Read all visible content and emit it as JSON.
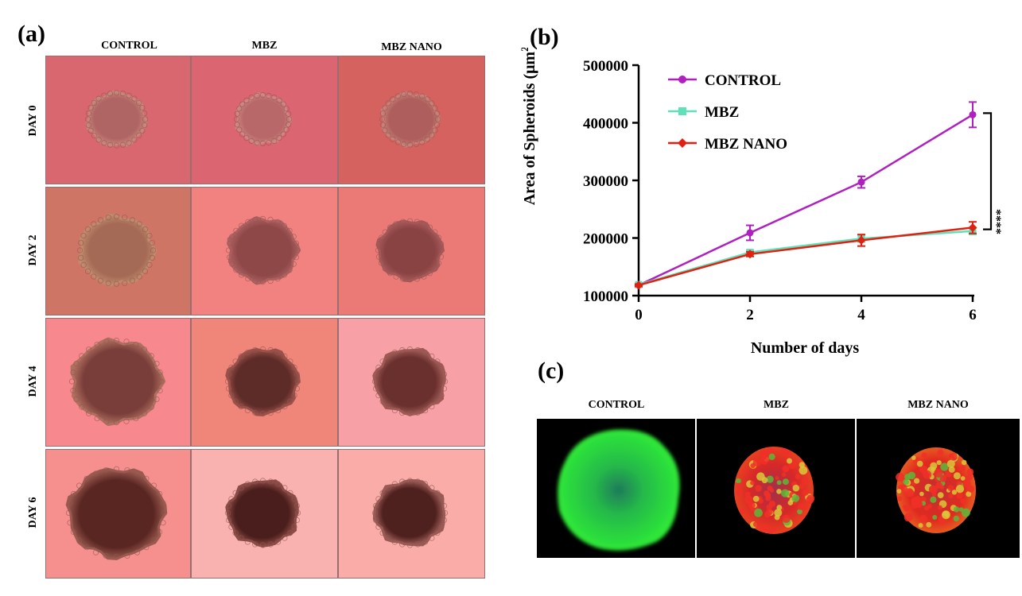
{
  "panel_a": {
    "label": "(a)",
    "columns": [
      "CONTROL",
      "MBZ",
      "MBZ NANO"
    ],
    "rows": [
      "DAY 0",
      "DAY 2",
      "DAY 4",
      "DAY 6"
    ]
  },
  "panel_b": {
    "label": "(b)"
  },
  "panel_c": {
    "label": "(c)",
    "columns": [
      "CONTROL",
      "MBZ",
      "MBZ NANO"
    ]
  },
  "chart_data": {
    "type": "line",
    "x": [
      0,
      2,
      4,
      6
    ],
    "xlabel": "Number of days",
    "ylabel": "Area of Spheroids (μm²)",
    "ylabel_main": "Area of Spheroids (μm",
    "ylabel_sup": "2",
    "ylabel_end": ")",
    "ylim": [
      100000,
      500000
    ],
    "xlim": [
      0,
      6
    ],
    "yticks": [
      100000,
      200000,
      300000,
      400000,
      500000
    ],
    "ytick_labels": [
      "100000",
      "200000",
      "300000",
      "400000",
      "500000"
    ],
    "xticks": [
      0,
      2,
      4,
      6
    ],
    "xtick_labels": [
      "0",
      "2",
      "4",
      "6"
    ],
    "grid": false,
    "legend_position": "top-left",
    "significance": "****",
    "series": [
      {
        "name": "CONTROL",
        "color": "#b01fc0",
        "marker": "circle",
        "values": [
          118000,
          209000,
          297000,
          414000
        ],
        "errors": [
          3000,
          13000,
          10000,
          22000
        ]
      },
      {
        "name": "MBZ",
        "color": "#5ee0b8",
        "marker": "square",
        "values": [
          119000,
          175000,
          199000,
          212000
        ],
        "errors": [
          2000,
          4000,
          6000,
          6000
        ]
      },
      {
        "name": "MBZ NANO",
        "color": "#e02010",
        "marker": "diamond",
        "values": [
          118000,
          172000,
          196000,
          218000
        ],
        "errors": [
          2000,
          4000,
          10000,
          10000
        ]
      }
    ]
  }
}
